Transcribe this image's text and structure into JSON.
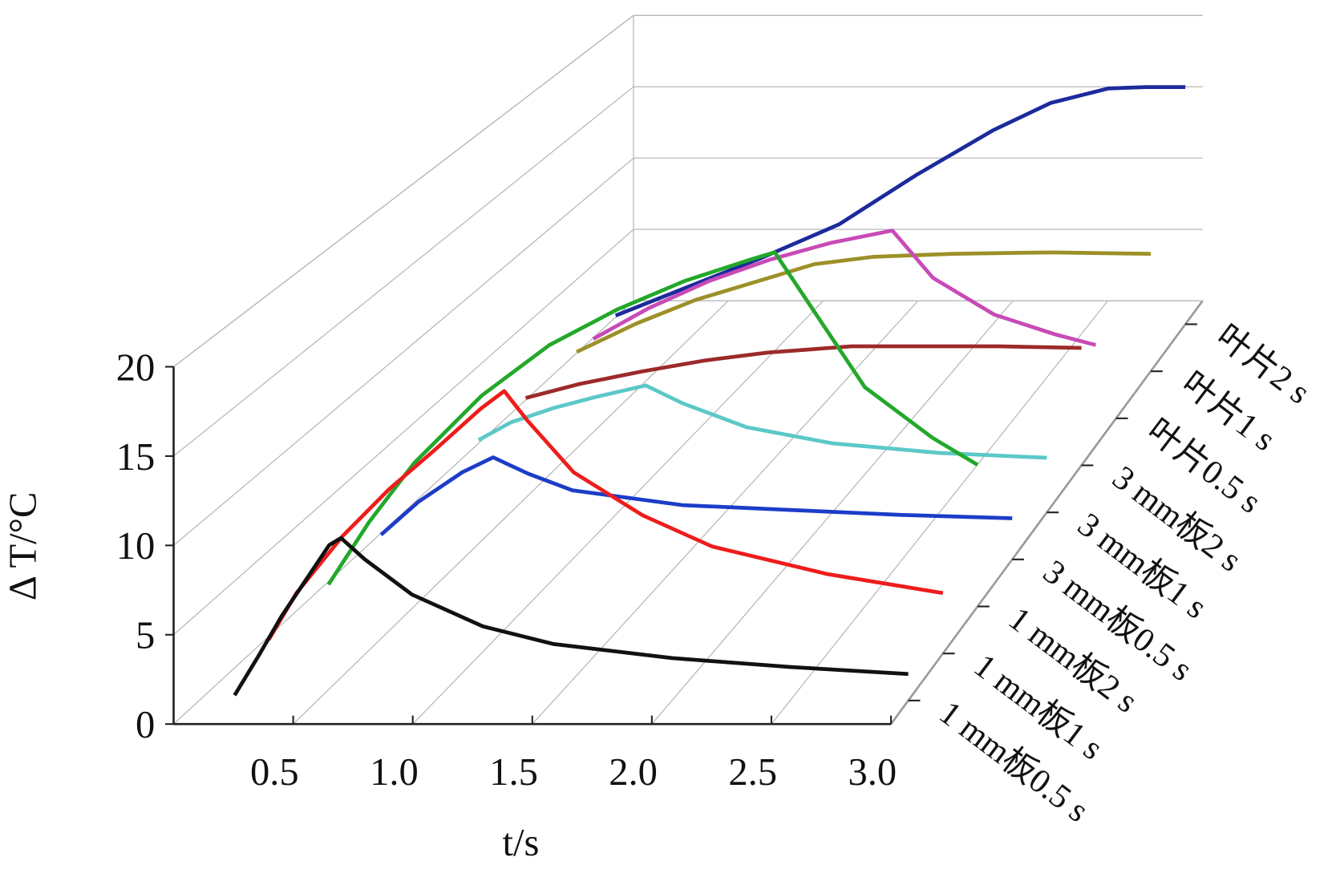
{
  "chart_data": {
    "type": "line3d",
    "x_label": "t/s",
    "y_label": "Δ T/°C",
    "xlim": [
      0,
      3.0
    ],
    "ylim": [
      0,
      20
    ],
    "xticks": [
      0.5,
      {
        "value": 1,
        "label": "1.0"
      },
      1.5,
      {
        "value": 2,
        "label": "2.0"
      },
      2.5,
      {
        "value": 3,
        "label": "3.0"
      }
    ],
    "yticks": [
      0,
      5,
      10,
      15,
      20
    ],
    "series": [
      {
        "name": "1 mm板0.5 s",
        "color": "#111111",
        "x": [
          0.15,
          0.25,
          0.35,
          0.45,
          0.55,
          0.6,
          0.7,
          0.9,
          1.2,
          1.5,
          2.0,
          2.5,
          3.0
        ],
        "values": [
          0.3,
          2.5,
          4.8,
          6.8,
          8.8,
          9.2,
          8.0,
          6.0,
          4.2,
          3.2,
          2.4,
          1.9,
          1.5
        ]
      },
      {
        "name": "1 mm板1 s",
        "color": "#ee1c1c",
        "x": [
          0.08,
          0.2,
          0.4,
          0.6,
          0.8,
          1.0,
          1.1,
          1.2,
          1.4,
          1.7,
          2.0,
          2.5,
          3.0
        ],
        "values": [
          0.8,
          3.5,
          6.8,
          9.5,
          11.8,
          14.2,
          15.2,
          13.5,
          10.5,
          8.0,
          6.2,
          4.6,
          3.5
        ]
      },
      {
        "name": "1 mm板2 s",
        "color": "#22a82a",
        "x": [
          0.12,
          0.3,
          0.5,
          0.8,
          1.1,
          1.4,
          1.7,
          2.0,
          2.1,
          2.3,
          2.5,
          2.8,
          3.0
        ],
        "values": [
          1.3,
          5,
          8.5,
          12.5,
          15.5,
          17.6,
          19.3,
          20.6,
          21,
          17,
          13,
          10,
          8.4
        ]
      },
      {
        "name": "3 mm板0.5 s",
        "color": "#1c3cc8",
        "x": [
          0.13,
          0.3,
          0.5,
          0.64,
          0.8,
          1.0,
          1.5,
          2.0,
          2.5,
          3.0
        ],
        "values": [
          1.5,
          3.5,
          5.3,
          6.2,
          5.2,
          4.2,
          3.3,
          3.0,
          2.7,
          2.5
        ]
      },
      {
        "name": "3 mm板1 s",
        "color": "#5cc8c8",
        "x": [
          0.35,
          0.5,
          0.7,
          0.9,
          1.13,
          1.3,
          1.6,
          2.0,
          2.5,
          3.0
        ],
        "values": [
          4.5,
          5.6,
          6.5,
          7.2,
          7.9,
          6.8,
          5.3,
          4.3,
          3.7,
          3.4
        ]
      },
      {
        "name": "3 mm板2 s",
        "color": "#9c2a2a",
        "x": [
          0.34,
          0.6,
          0.9,
          1.2,
          1.5,
          1.9,
          2.2,
          2.6,
          3.0
        ],
        "values": [
          4.3,
          5.2,
          6.0,
          6.7,
          7.2,
          7.6,
          7.6,
          7.6,
          7.5
        ]
      },
      {
        "name": "叶片0.5 s",
        "color": "#c84ab8",
        "x": [
          0.43,
          0.7,
          1.0,
          1.3,
          1.6,
          1.9,
          2.1,
          2.4,
          2.7,
          2.9
        ],
        "values": [
          5.2,
          7.2,
          9.0,
          10.4,
          11.5,
          12.3,
          9.2,
          6.8,
          5.5,
          4.8
        ]
      },
      {
        "name": "叶片1 s",
        "color": "#9c9028",
        "x": [
          0.1,
          0.4,
          0.7,
          1.0,
          1.3,
          1.6,
          2.0,
          2.5,
          3.0
        ],
        "values": [
          1.3,
          3.2,
          4.8,
          6.0,
          7.2,
          7.7,
          7.9,
          8.0,
          7.9
        ]
      },
      {
        "name": "叶片2 s",
        "color": "#1c2a9c",
        "x": [
          0.04,
          0.4,
          0.8,
          1.2,
          1.6,
          2.0,
          2.3,
          2.6,
          2.8,
          3.0
        ],
        "values": [
          0.6,
          2.5,
          4.6,
          6.9,
          10.3,
          13.4,
          15.3,
          16.3,
          16.4,
          16.4
        ]
      }
    ]
  }
}
